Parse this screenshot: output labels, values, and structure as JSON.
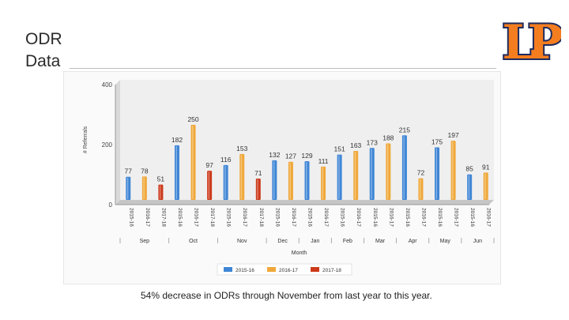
{
  "slide": {
    "title_line1": "ODR",
    "title_line2": "Data",
    "caption": "54% decrease in ODRs through November from last year to this year.",
    "logo_text": "LP"
  },
  "colors": {
    "s2015": "#3f86d6",
    "s2016": "#f0a83a",
    "s2017": "#cc3a1a",
    "logo_fill": "#f47d20",
    "logo_stroke": "#1e2b5e"
  },
  "chart_data": {
    "type": "bar",
    "ylabel": "# Referrals",
    "xlabel": "Month",
    "ylim": [
      0,
      400
    ],
    "yticks": [
      0,
      200,
      400
    ],
    "grid": false,
    "legend_position": "bottom",
    "series": [
      {
        "name": "2015-16",
        "color": "#3f86d6"
      },
      {
        "name": "2016-17",
        "color": "#f0a83a"
      },
      {
        "name": "2017-18",
        "color": "#cc3a1a"
      }
    ],
    "groups": [
      {
        "month": "Sep",
        "bars": [
          {
            "series": "2015-16",
            "tick": "2015-16",
            "value": 77,
            "label": "77"
          },
          {
            "series": "2016-17",
            "tick": "2016-17",
            "value": 78,
            "label": "78"
          },
          {
            "series": "2017-18",
            "tick": "2017-18",
            "value": 51,
            "label": "51"
          }
        ]
      },
      {
        "month": "Oct",
        "bars": [
          {
            "series": "2015-16",
            "tick": "2015-16",
            "value": 182,
            "label": "182"
          },
          {
            "series": "2016-17",
            "tick": "2016-17",
            "value": 250,
            "label": "250"
          },
          {
            "series": "2017-18",
            "tick": "2017-18",
            "value": 97,
            "label": "97"
          }
        ]
      },
      {
        "month": "Nov",
        "bars": [
          {
            "series": "2015-16",
            "tick": "2015-16",
            "value": 116,
            "label": "116"
          },
          {
            "series": "2016-17",
            "tick": "2016-17",
            "value": 153,
            "label": "153"
          },
          {
            "series": "2017-18",
            "tick": "2017-18",
            "value": 71,
            "label": "71"
          }
        ]
      },
      {
        "month": "Dec",
        "bars": [
          {
            "series": "2015-16",
            "tick": "2015-16",
            "value": 132,
            "label": "132"
          },
          {
            "series": "2016-17",
            "tick": "2016-17",
            "value": 127,
            "label": "127"
          }
        ]
      },
      {
        "month": "Jan",
        "bars": [
          {
            "series": "2015-16",
            "tick": "2015-16",
            "value": 129,
            "label": "129"
          },
          {
            "series": "2016-17",
            "tick": "2016-17",
            "value": 111,
            "label": "111"
          }
        ]
      },
      {
        "month": "Feb",
        "bars": [
          {
            "series": "2015-16",
            "tick": "2015-16",
            "value": 151,
            "label": "151"
          },
          {
            "series": "2016-17",
            "tick": "2016-17",
            "value": 163,
            "label": "163"
          }
        ]
      },
      {
        "month": "Mar",
        "bars": [
          {
            "series": "2015-16",
            "tick": "2015-16",
            "value": 173,
            "label": "173"
          },
          {
            "series": "2016-17",
            "tick": "2016-17",
            "value": 188,
            "label": "188"
          }
        ]
      },
      {
        "month": "Apr",
        "bars": [
          {
            "series": "2015-16",
            "tick": "2015-16",
            "value": 215,
            "label": "215"
          },
          {
            "series": "2016-17",
            "tick": "2016-17",
            "value": 72,
            "label": "72"
          }
        ]
      },
      {
        "month": "May",
        "bars": [
          {
            "series": "2015-16",
            "tick": "2015-16",
            "value": 175,
            "label": "175"
          },
          {
            "series": "2016-17",
            "tick": "2016-17",
            "value": 197,
            "label": "197"
          }
        ]
      },
      {
        "month": "Jun",
        "bars": [
          {
            "series": "2015-16",
            "tick": "2015-16",
            "value": 85,
            "label": "85"
          },
          {
            "series": "2016-17",
            "tick": "2016-17",
            "value": 91,
            "label": "91"
          }
        ]
      }
    ]
  }
}
